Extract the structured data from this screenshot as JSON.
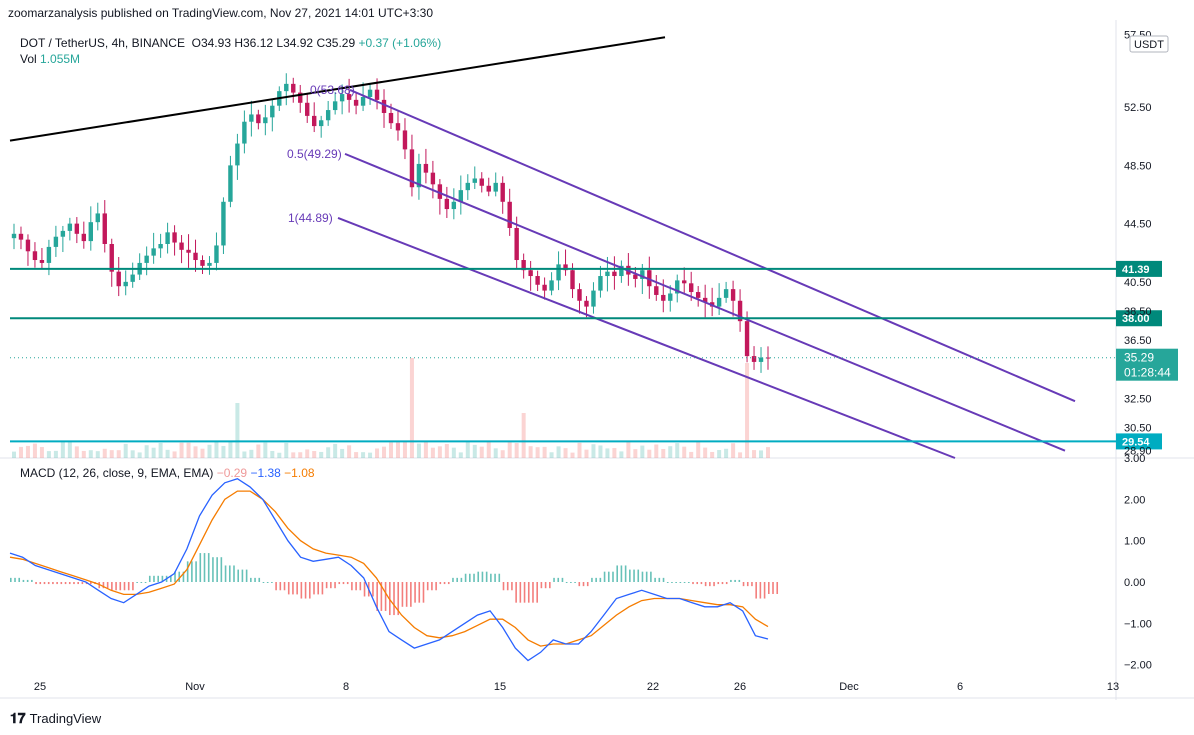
{
  "header": {
    "published": "zoomarzanalysis published on TradingView.com, Nov 27, 2021 14:01 UTC+3:30"
  },
  "legend": {
    "symbol": "DOT / TetherUS, 4h, BINANCE",
    "open": "O34.93",
    "high": "H36.12",
    "low": "L34.92",
    "close": "C35.29",
    "change": "+0.37 (+1.06%)",
    "vol_label": "Vol",
    "vol_value": "1.055M"
  },
  "currency_badge": "USDT",
  "macd_legend": {
    "label": "MACD (12, 26, close, 9, EMA, EMA)",
    "hist": "−0.29",
    "macd": "−1.38",
    "signal": "−1.08"
  },
  "footer": {
    "brand": "TradingView"
  },
  "colors": {
    "up": "#26a69a",
    "down": "#c2185b",
    "channel": "#673ab7",
    "hline": "#00897b",
    "hline_low": "#00acc1",
    "trend": "#000000",
    "macd_line": "#2962ff",
    "signal_line": "#f57c00",
    "hist_up": "#26a69a",
    "hist_down": "#ef5350"
  },
  "chart_data": [
    {
      "type": "candlestick",
      "title": "DOT / TetherUS, 4h, BINANCE",
      "y_axis_ticks": [
        "57.50",
        "52.50",
        "48.50",
        "44.50",
        "40.50",
        "38.50",
        "36.50",
        "32.50",
        "30.50",
        "28.90"
      ],
      "x_axis_ticks": [
        "25",
        "Nov",
        "8",
        "15",
        "22",
        "26",
        "Dec",
        "6",
        "13"
      ],
      "ylim": [
        28.4,
        57.8
      ],
      "price_labels": [
        {
          "label": "41.39",
          "value": 41.39
        },
        {
          "label": "38.00",
          "value": 38.0
        },
        {
          "label": "29.54",
          "value": 29.54
        }
      ],
      "last_price": {
        "value": 35.29,
        "label": "35.29",
        "countdown": "01:28:44"
      },
      "fib_labels": [
        {
          "label": "0(53.68)",
          "value": 53.68
        },
        {
          "label": "0.5(49.29)",
          "value": 49.29
        },
        {
          "label": "1(44.89)",
          "value": 44.89
        }
      ],
      "candles_close_path": [
        43.8,
        43.4,
        42.6,
        42.0,
        41.8,
        42.9,
        43.6,
        44.0,
        44.5,
        43.8,
        43.3,
        44.6,
        45.2,
        43.1,
        41.2,
        40.2,
        40.5,
        41.0,
        41.8,
        42.3,
        42.8,
        43.1,
        43.9,
        43.2,
        42.7,
        42.5,
        42.0,
        41.6,
        41.8,
        43.0,
        46.0,
        48.5,
        50.0,
        51.5,
        52.0,
        51.4,
        51.8,
        52.6,
        53.6,
        54.1,
        53.5,
        52.8,
        51.9,
        51.2,
        51.6,
        52.3,
        52.9,
        53.4,
        53.0,
        52.6,
        53.2,
        53.7,
        53.0,
        52.1,
        51.4,
        50.9,
        49.6,
        47.0,
        48.6,
        48.0,
        47.2,
        46.2,
        45.5,
        46.0,
        46.8,
        47.3,
        47.6,
        47.1,
        46.7,
        47.3,
        46.0,
        44.2,
        42.0,
        41.3,
        40.9,
        40.3,
        39.9,
        40.6,
        41.7,
        41.3,
        40.0,
        39.2,
        38.8,
        39.9,
        40.9,
        41.2,
        40.9,
        41.6,
        41.0,
        40.7,
        41.3,
        40.2,
        39.6,
        39.2,
        39.7,
        40.6,
        40.4,
        39.8,
        39.4,
        39.1,
        38.8,
        39.4,
        40.0,
        39.2,
        37.8,
        35.4,
        35.0,
        35.3,
        35.29
      ],
      "volume_spikes": [
        {
          "index": 57,
          "relative": 1.0
        },
        {
          "index": 105,
          "relative": 0.95
        },
        {
          "index": 32,
          "relative": 0.55
        },
        {
          "index": 73,
          "relative": 0.45
        }
      ]
    },
    {
      "type": "line",
      "title": "MACD (12, 26, close, 9, EMA, EMA)",
      "y_axis_ticks": [
        "3.00",
        "2.00",
        "1.00",
        "0.00",
        "−1.00",
        "−2.00"
      ],
      "ylim": [
        -2.25,
        3.0
      ],
      "series": [
        {
          "name": "MACD",
          "values": [
            0.7,
            0.6,
            0.4,
            0.3,
            0.2,
            0.1,
            0.0,
            -0.2,
            -0.4,
            -0.5,
            -0.3,
            -0.1,
            0.0,
            0.2,
            0.8,
            1.6,
            2.1,
            2.4,
            2.5,
            2.3,
            2.0,
            1.5,
            1.0,
            0.6,
            0.5,
            0.55,
            0.6,
            0.4,
            0.1,
            -0.6,
            -1.2,
            -1.4,
            -1.6,
            -1.5,
            -1.4,
            -1.2,
            -1.0,
            -0.8,
            -0.7,
            -1.1,
            -1.6,
            -1.9,
            -1.7,
            -1.4,
            -1.5,
            -1.5,
            -1.2,
            -0.8,
            -0.4,
            -0.3,
            -0.2,
            -0.3,
            -0.4,
            -0.4,
            -0.5,
            -0.6,
            -0.6,
            -0.5,
            -0.7,
            -1.3,
            -1.38
          ]
        },
        {
          "name": "Signal",
          "values": [
            0.6,
            0.55,
            0.45,
            0.35,
            0.25,
            0.15,
            0.05,
            -0.05,
            -0.2,
            -0.3,
            -0.3,
            -0.25,
            -0.15,
            -0.05,
            0.3,
            0.9,
            1.5,
            2.0,
            2.2,
            2.2,
            2.0,
            1.7,
            1.3,
            1.0,
            0.8,
            0.7,
            0.65,
            0.6,
            0.45,
            0.1,
            -0.4,
            -0.8,
            -1.1,
            -1.3,
            -1.35,
            -1.3,
            -1.2,
            -1.05,
            -0.9,
            -0.9,
            -1.1,
            -1.4,
            -1.55,
            -1.5,
            -1.5,
            -1.4,
            -1.3,
            -1.05,
            -0.8,
            -0.6,
            -0.45,
            -0.4,
            -0.4,
            -0.4,
            -0.45,
            -0.5,
            -0.55,
            -0.55,
            -0.6,
            -0.9,
            -1.08
          ]
        },
        {
          "name": "Histogram",
          "values": [
            0.1,
            0.05,
            -0.05,
            -0.05,
            -0.05,
            -0.05,
            -0.05,
            -0.15,
            -0.2,
            -0.2,
            0.0,
            0.15,
            0.15,
            0.25,
            0.5,
            0.7,
            0.6,
            0.4,
            0.3,
            0.1,
            0.0,
            -0.2,
            -0.3,
            -0.4,
            -0.3,
            -0.15,
            -0.05,
            -0.2,
            -0.35,
            -0.7,
            -0.8,
            -0.6,
            -0.5,
            -0.2,
            -0.05,
            0.1,
            0.2,
            0.25,
            0.2,
            -0.2,
            -0.5,
            -0.5,
            -0.15,
            0.1,
            0.0,
            -0.1,
            0.1,
            0.25,
            0.4,
            0.3,
            0.25,
            0.1,
            0.0,
            0.0,
            -0.05,
            -0.1,
            -0.05,
            0.05,
            -0.1,
            -0.4,
            -0.29
          ]
        }
      ]
    }
  ]
}
